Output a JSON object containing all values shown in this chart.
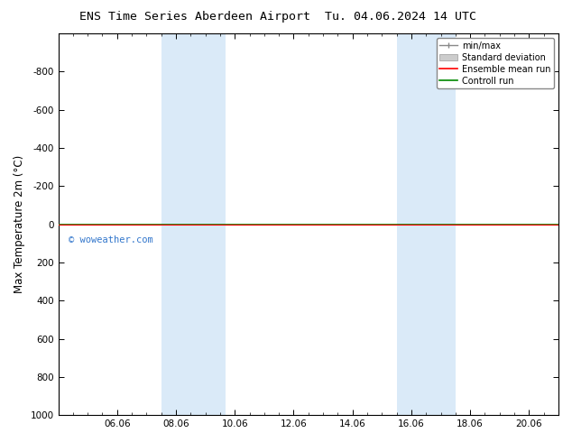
{
  "title": "ENS Time Series Aberdeen Airport",
  "title2": "Tu. 04.06.2024 14 UTC",
  "ylabel": "Max Temperature 2m (°C)",
  "ylim_top": -1000,
  "ylim_bottom": 1000,
  "yticks": [
    -800,
    -600,
    -400,
    -200,
    0,
    200,
    400,
    600,
    800,
    1000
  ],
  "xtick_labels": [
    "06.06",
    "08.06",
    "10.06",
    "12.06",
    "14.06",
    "16.06",
    "18.06",
    "20.06"
  ],
  "xtick_positions": [
    2,
    4,
    6,
    8,
    10,
    12,
    14,
    16
  ],
  "xlim": [
    0,
    17
  ],
  "blue_bands": [
    [
      3.5,
      4.5
    ],
    [
      4.5,
      5.7
    ],
    [
      11.5,
      12.5
    ],
    [
      12.5,
      13.5
    ]
  ],
  "band_color": "#daeaf8",
  "green_line_y": 0,
  "red_line_y": 0,
  "legend_labels": [
    "min/max",
    "Standard deviation",
    "Ensemble mean run",
    "Controll run"
  ],
  "legend_colors": [
    "#888888",
    "#bbbbbb",
    "#ff0000",
    "#008800"
  ],
  "watermark": "© woweather.com",
  "watermark_color": "#3377cc",
  "background_color": "#ffffff",
  "plot_bg_color": "#ffffff",
  "title_fontsize": 9.5,
  "legend_fontsize": 7,
  "tick_fontsize": 7.5,
  "ylabel_fontsize": 8.5
}
